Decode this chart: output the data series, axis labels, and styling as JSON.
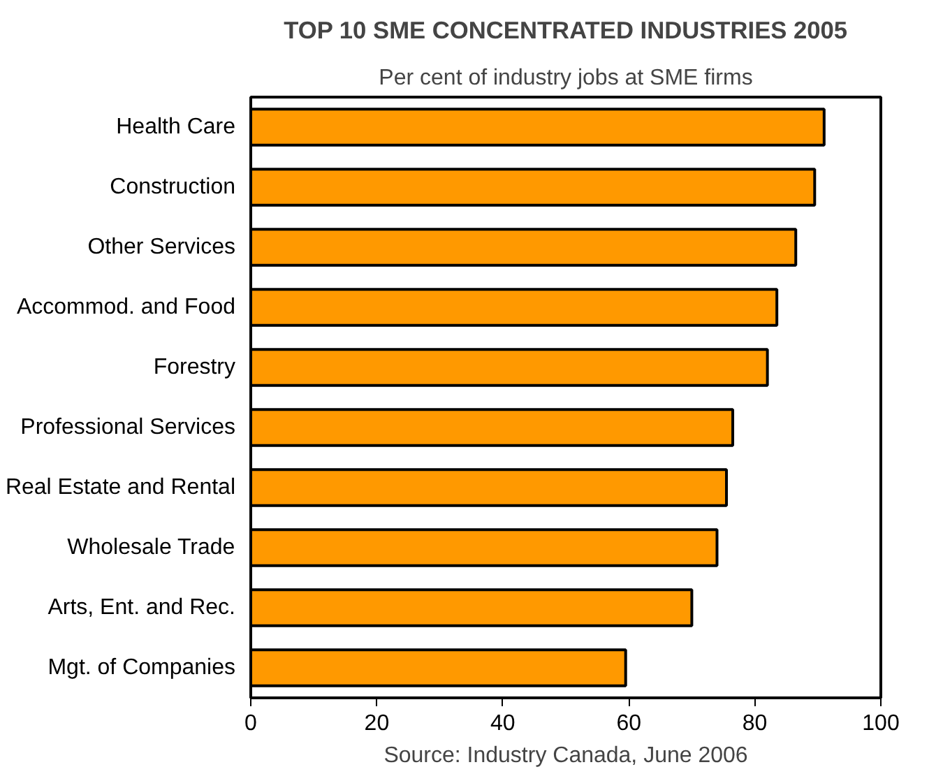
{
  "chart_data": {
    "type": "bar",
    "orientation": "horizontal",
    "title": "TOP 10 SME CONCENTRATED INDUSTRIES 2005",
    "subtitle": "Per cent of industry jobs at SME firms",
    "categories": [
      "Health Care",
      "Construction",
      "Other Services",
      "Accommod. and Food",
      "Forestry",
      "Professional Services",
      "Real Estate and Rental",
      "Wholesale Trade",
      "Arts, Ent. and Rec.",
      "Mgt. of Companies"
    ],
    "values": [
      91,
      89.5,
      86.5,
      83.5,
      82,
      76.5,
      75.5,
      74,
      70,
      59.5
    ],
    "color": "#ff9900",
    "xlim": [
      0,
      100
    ],
    "xticks": [
      0,
      20,
      40,
      60,
      80,
      100
    ],
    "grid": false,
    "annotations": [
      "Source: Industry Canada, June 2006"
    ]
  }
}
